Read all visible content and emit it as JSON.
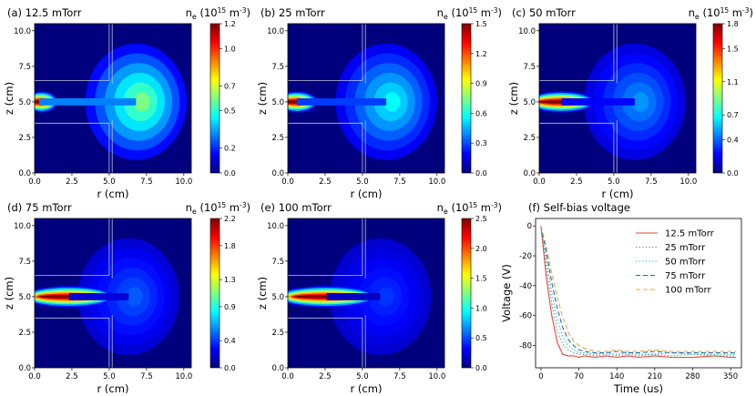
{
  "figure": {
    "colormap": [
      "#00007f",
      "#0000ff",
      "#007fff",
      "#00ffff",
      "#7fff7f",
      "#ffff00",
      "#ff7f00",
      "#ff0000",
      "#7f0000"
    ]
  },
  "chart_data": [
    {
      "type": "heatmap",
      "panel_label": "(a) 12.5 mTorr",
      "colorbar_label": "n_e (10^15 m^-3)",
      "xlabel": "r (cm)",
      "ylabel": "z (cm)",
      "xlim": [
        0,
        10.5
      ],
      "ylim": [
        0,
        10.5
      ],
      "xticks": [
        "0.0",
        "2.5",
        "5.0",
        "7.5",
        "10.0"
      ],
      "yticks": [
        "0.0",
        "2.5",
        "5.0",
        "7.5",
        "10.0"
      ],
      "colorbar_ticks": [
        "0.0",
        "0.2",
        "0.5",
        "0.7",
        "1.0",
        "1.2"
      ],
      "vmax": 1.2,
      "source_peak": {
        "r": 0.3,
        "z": 5.0,
        "value": 1.2
      },
      "chamber_peak": {
        "r": 6.8,
        "z": 5.0,
        "value": 0.55
      }
    },
    {
      "type": "heatmap",
      "panel_label": "(b) 25 mTorr",
      "colorbar_label": "n_e (10^15 m^-3)",
      "xlabel": "r (cm)",
      "ylabel": "z (cm)",
      "xlim": [
        0,
        10.5
      ],
      "ylim": [
        0,
        10.5
      ],
      "xticks": [
        "0.0",
        "2.5",
        "5.0",
        "7.5",
        "10.0"
      ],
      "yticks": [
        "0.0",
        "2.5",
        "5.0",
        "7.5",
        "10.0"
      ],
      "colorbar_ticks": [
        "0.0",
        "0.3",
        "0.6",
        "0.9",
        "1.2",
        "1.5"
      ],
      "vmax": 1.5,
      "source_peak": {
        "r": 0.6,
        "z": 5.0,
        "value": 1.5
      },
      "chamber_peak": {
        "r": 6.6,
        "z": 5.0,
        "value": 0.5
      }
    },
    {
      "type": "heatmap",
      "panel_label": "(c) 50 mTorr",
      "colorbar_label": "n_e (10^15 m^-3)",
      "xlabel": "r (cm)",
      "ylabel": "z (cm)",
      "xlim": [
        0,
        10.5
      ],
      "ylim": [
        0,
        10.5
      ],
      "xticks": [
        "0.0",
        "2.5",
        "5.0",
        "7.5",
        "10.0"
      ],
      "yticks": [
        "0.0",
        "2.5",
        "5.0",
        "7.5",
        "10.0"
      ],
      "colorbar_ticks": [
        "0.0",
        "0.4",
        "0.7",
        "1.1",
        "1.5",
        "1.8"
      ],
      "vmax": 1.8,
      "source_peak": {
        "r": 1.5,
        "z": 5.0,
        "value": 1.8
      },
      "chamber_peak": {
        "r": 6.4,
        "z": 5.0,
        "value": 0.4
      }
    },
    {
      "type": "heatmap",
      "panel_label": "(d) 75 mTorr",
      "colorbar_label": "n_e (10^15 m^-3)",
      "xlabel": "r (cm)",
      "ylabel": "z (cm)",
      "xlim": [
        0,
        10.5
      ],
      "ylim": [
        0,
        10.5
      ],
      "xticks": [
        "0.0",
        "2.5",
        "5.0",
        "7.5",
        "10.0"
      ],
      "yticks": [
        "0.0",
        "2.5",
        "5.0",
        "7.5",
        "10.0"
      ],
      "colorbar_ticks": [
        "0.0",
        "0.4",
        "0.9",
        "1.3",
        "1.8",
        "2.2"
      ],
      "vmax": 2.2,
      "source_peak": {
        "r": 2.3,
        "z": 5.0,
        "value": 2.2
      },
      "chamber_peak": {
        "r": 6.3,
        "z": 5.0,
        "value": 0.35
      }
    },
    {
      "type": "heatmap",
      "panel_label": "(e) 100 mTorr",
      "colorbar_label": "n_e (10^15 m^-3)",
      "xlabel": "r (cm)",
      "ylabel": "z (cm)",
      "xlim": [
        0,
        10.5
      ],
      "ylim": [
        0,
        10.5
      ],
      "xticks": [
        "0.0",
        "2.5",
        "5.0",
        "7.5",
        "10.0"
      ],
      "yticks": [
        "0.0",
        "2.5",
        "5.0",
        "7.5",
        "10.0"
      ],
      "colorbar_ticks": [
        "0.0",
        "0.5",
        "1.0",
        "1.5",
        "2.0",
        "2.5"
      ],
      "vmax": 2.5,
      "source_peak": {
        "r": 2.6,
        "z": 5.0,
        "value": 2.5
      },
      "chamber_peak": {
        "r": 6.2,
        "z": 5.0,
        "value": 0.3
      }
    },
    {
      "type": "line",
      "panel_label": "(f) Self-bias voltage",
      "xlabel": "Time (us)",
      "ylabel": "Voltage (V)",
      "xlim": [
        -10,
        370
      ],
      "ylim": [
        -95,
        5
      ],
      "xticks": [
        0,
        70,
        140,
        210,
        280,
        350
      ],
      "yticks": [
        0,
        -20,
        -40,
        -60,
        -80
      ],
      "x": [
        0,
        10,
        20,
        30,
        40,
        50,
        60,
        70,
        80,
        100,
        120,
        140,
        160,
        180,
        210,
        240,
        280,
        320,
        350,
        360
      ],
      "series": [
        {
          "name": "12.5 mTorr",
          "color": "#e8453c",
          "dash": "solid",
          "values": [
            0,
            -35,
            -60,
            -78,
            -86,
            -87,
            -87,
            -88,
            -87,
            -88,
            -87,
            -88,
            -87,
            -88,
            -87,
            -88,
            -88,
            -87,
            -88,
            -88
          ]
        },
        {
          "name": "25 mTorr",
          "color": "#2f8fb3",
          "dash": "dot",
          "values": [
            0,
            -28,
            -52,
            -70,
            -79,
            -83,
            -85,
            -86,
            -86,
            -87,
            -86,
            -87,
            -86,
            -87,
            -86,
            -87,
            -86,
            -87,
            -87,
            -87
          ]
        },
        {
          "name": "50 mTorr",
          "color": "#1aa7a3",
          "dash": "dot",
          "values": [
            0,
            -22,
            -45,
            -63,
            -74,
            -80,
            -83,
            -85,
            -85,
            -86,
            -85,
            -86,
            -85,
            -86,
            -86,
            -85,
            -86,
            -86,
            -86,
            -86
          ]
        },
        {
          "name": "75 mTorr",
          "color": "#1f6fb2",
          "dash": "dash",
          "values": [
            0,
            -18,
            -38,
            -55,
            -68,
            -76,
            -80,
            -83,
            -84,
            -85,
            -85,
            -84,
            -85,
            -85,
            -84,
            -85,
            -85,
            -85,
            -85,
            -85
          ]
        },
        {
          "name": "100 mTorr",
          "color": "#f5a33c",
          "dash": "dash",
          "values": [
            0,
            -14,
            -32,
            -48,
            -61,
            -71,
            -77,
            -80,
            -82,
            -84,
            -84,
            -83,
            -84,
            -84,
            -83,
            -84,
            -84,
            -84,
            -84,
            -84
          ]
        }
      ]
    }
  ]
}
